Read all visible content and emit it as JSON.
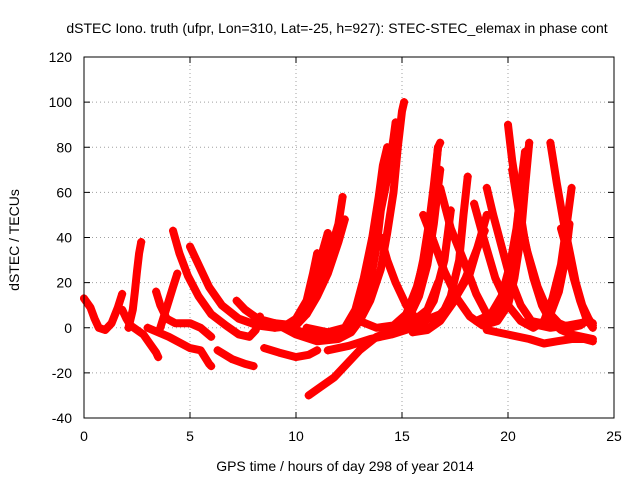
{
  "chart_data": {
    "type": "scatter",
    "title": "dSTEC Iono. truth (ufpr, Lon=310, Lat=-25, h=927): STEC-STEC_elemax in phase cont",
    "xlabel": "GPS time / hours of day 298 of year 2014",
    "ylabel": "dSTEC  / TECUs",
    "xlim": [
      0,
      25
    ],
    "ylim": [
      -40,
      120
    ],
    "xticks": [
      0,
      5,
      10,
      15,
      20,
      25
    ],
    "yticks": [
      -40,
      -20,
      0,
      20,
      40,
      60,
      80,
      100,
      120
    ],
    "grid": true,
    "legend": "none",
    "marker": "plus",
    "color": "#ff0000",
    "series": [
      {
        "points": [
          [
            0.0,
            13
          ],
          [
            0.3,
            9
          ],
          [
            0.5,
            4
          ],
          [
            0.7,
            0
          ],
          [
            1.0,
            -1
          ],
          [
            1.3,
            2
          ],
          [
            1.6,
            9
          ],
          [
            1.8,
            15
          ]
        ]
      },
      {
        "points": [
          [
            1.8,
            8
          ],
          [
            2.0,
            4
          ],
          [
            2.2,
            1
          ],
          [
            2.5,
            -1
          ],
          [
            2.8,
            -3
          ],
          [
            3.1,
            -7
          ],
          [
            3.4,
            -11
          ],
          [
            3.5,
            -13
          ]
        ]
      },
      {
        "points": [
          [
            2.1,
            0
          ],
          [
            2.3,
            8
          ],
          [
            2.4,
            16
          ],
          [
            2.5,
            25
          ],
          [
            2.6,
            33
          ],
          [
            2.7,
            38
          ]
        ]
      },
      {
        "points": [
          [
            3.4,
            16
          ],
          [
            3.6,
            10
          ],
          [
            3.9,
            4
          ],
          [
            4.3,
            2
          ],
          [
            5.0,
            2
          ],
          [
            5.5,
            0
          ],
          [
            6.0,
            -4
          ]
        ]
      },
      {
        "points": [
          [
            3.6,
            0
          ],
          [
            3.8,
            6
          ],
          [
            4.0,
            12
          ],
          [
            4.2,
            18
          ],
          [
            4.4,
            24
          ]
        ]
      },
      {
        "points": [
          [
            4.2,
            43
          ],
          [
            4.5,
            33
          ],
          [
            4.9,
            23
          ],
          [
            5.4,
            14
          ],
          [
            6.0,
            6
          ],
          [
            6.7,
            1
          ],
          [
            7.3,
            -3
          ],
          [
            7.8,
            -4
          ],
          [
            8.1,
            -1
          ],
          [
            8.3,
            5
          ]
        ]
      },
      {
        "points": [
          [
            3.0,
            0
          ],
          [
            4.0,
            -4
          ],
          [
            5.0,
            -9
          ],
          [
            5.5,
            -10
          ],
          [
            5.9,
            -16
          ],
          [
            6.0,
            -17
          ]
        ]
      },
      {
        "points": [
          [
            5.0,
            36
          ],
          [
            5.4,
            28
          ],
          [
            5.9,
            18
          ],
          [
            6.5,
            10
          ],
          [
            7.3,
            4
          ],
          [
            8.2,
            1
          ],
          [
            9.0,
            0
          ],
          [
            9.8,
            2
          ],
          [
            10.5,
            6
          ],
          [
            11.0,
            14
          ],
          [
            11.5,
            24
          ],
          [
            12.0,
            38
          ],
          [
            12.3,
            48
          ]
        ]
      },
      {
        "points": [
          [
            6.3,
            -10
          ],
          [
            7.0,
            -14
          ],
          [
            7.6,
            -16
          ],
          [
            8.0,
            -17
          ]
        ]
      },
      {
        "points": [
          [
            7.2,
            12
          ],
          [
            7.6,
            8
          ],
          [
            8.2,
            4
          ],
          [
            9.0,
            2
          ],
          [
            10.0,
            1
          ],
          [
            10.5,
            6
          ],
          [
            11.0,
            16
          ],
          [
            11.5,
            30
          ],
          [
            12.0,
            46
          ],
          [
            12.2,
            58
          ]
        ]
      },
      {
        "points": [
          [
            8.0,
            3
          ],
          [
            9.0,
            0
          ],
          [
            10.0,
            1
          ],
          [
            10.4,
            8
          ],
          [
            10.8,
            18
          ],
          [
            11.2,
            32
          ],
          [
            11.5,
            42
          ]
        ]
      },
      {
        "points": [
          [
            9.5,
            1
          ],
          [
            10.0,
            4
          ],
          [
            10.5,
            12
          ],
          [
            10.8,
            24
          ],
          [
            11.0,
            33
          ]
        ]
      },
      {
        "points": [
          [
            8.5,
            -9
          ],
          [
            9.2,
            -11
          ],
          [
            10.0,
            -13
          ],
          [
            10.6,
            -12
          ],
          [
            11.0,
            -10
          ]
        ]
      },
      {
        "points": [
          [
            9.0,
            2
          ],
          [
            10.0,
            -3
          ],
          [
            11.0,
            -6
          ],
          [
            12.0,
            -5
          ],
          [
            12.6,
            -2
          ],
          [
            13.0,
            3
          ],
          [
            13.5,
            12
          ],
          [
            14.0,
            26
          ],
          [
            14.3,
            42
          ],
          [
            14.6,
            60
          ],
          [
            14.8,
            80
          ],
          [
            15.0,
            96
          ],
          [
            15.1,
            100
          ]
        ]
      },
      {
        "points": [
          [
            10.0,
            -1
          ],
          [
            11.0,
            -4
          ],
          [
            12.0,
            -3
          ],
          [
            12.6,
            0
          ],
          [
            13.0,
            6
          ],
          [
            13.5,
            20
          ],
          [
            13.8,
            36
          ],
          [
            14.0,
            52
          ],
          [
            14.3,
            66
          ],
          [
            14.5,
            78
          ],
          [
            14.6,
            84
          ],
          [
            14.7,
            91
          ]
        ]
      },
      {
        "points": [
          [
            10.5,
            0
          ],
          [
            11.5,
            -2
          ],
          [
            12.3,
            0
          ],
          [
            12.8,
            8
          ],
          [
            13.2,
            22
          ],
          [
            13.6,
            40
          ],
          [
            13.9,
            58
          ],
          [
            14.1,
            72
          ],
          [
            14.3,
            80
          ]
        ]
      },
      {
        "points": [
          [
            10.6,
            -30
          ],
          [
            11.2,
            -26
          ],
          [
            11.8,
            -22
          ],
          [
            12.4,
            -16
          ],
          [
            13.0,
            -10
          ],
          [
            13.8,
            -4
          ],
          [
            14.6,
            -1
          ],
          [
            15.4,
            2
          ],
          [
            16.2,
            8
          ],
          [
            16.7,
            20
          ]
        ]
      },
      {
        "points": [
          [
            11.5,
            -10
          ],
          [
            12.5,
            -8
          ],
          [
            13.5,
            -5
          ],
          [
            14.5,
            -3
          ],
          [
            15.5,
            0
          ],
          [
            16.0,
            4
          ],
          [
            16.5,
            12
          ],
          [
            17.0,
            30
          ],
          [
            17.3,
            52
          ]
        ]
      },
      {
        "points": [
          [
            13.0,
            3
          ],
          [
            13.8,
            0
          ],
          [
            14.6,
            1
          ],
          [
            15.2,
            6
          ],
          [
            15.7,
            18
          ],
          [
            16.2,
            36
          ],
          [
            16.5,
            60
          ],
          [
            16.7,
            80
          ],
          [
            16.8,
            82
          ]
        ]
      },
      {
        "points": [
          [
            14.0,
            40
          ],
          [
            14.3,
            30
          ],
          [
            14.7,
            20
          ],
          [
            15.2,
            10
          ],
          [
            15.8,
            2
          ],
          [
            16.3,
            0
          ],
          [
            16.8,
            4
          ],
          [
            17.3,
            14
          ],
          [
            17.7,
            30
          ],
          [
            17.9,
            50
          ],
          [
            18.1,
            67
          ]
        ]
      },
      {
        "points": [
          [
            14.5,
            0
          ],
          [
            15.3,
            4
          ],
          [
            15.8,
            14
          ],
          [
            16.2,
            28
          ],
          [
            16.5,
            46
          ],
          [
            16.7,
            62
          ],
          [
            16.8,
            70
          ]
        ]
      },
      {
        "points": [
          [
            15.0,
            2
          ],
          [
            15.6,
            12
          ],
          [
            16.0,
            30
          ],
          [
            16.3,
            48
          ],
          [
            16.5,
            63
          ],
          [
            16.7,
            80
          ]
        ]
      },
      {
        "points": [
          [
            16.0,
            50
          ],
          [
            16.5,
            38
          ],
          [
            17.0,
            25
          ],
          [
            17.6,
            13
          ],
          [
            18.2,
            5
          ],
          [
            18.8,
            1
          ],
          [
            19.5,
            3
          ],
          [
            20.0,
            10
          ],
          [
            20.3,
            22
          ],
          [
            20.6,
            40
          ],
          [
            20.8,
            62
          ],
          [
            21.0,
            82
          ]
        ]
      },
      {
        "points": [
          [
            16.8,
            62
          ],
          [
            17.3,
            44
          ],
          [
            17.9,
            30
          ],
          [
            18.5,
            15
          ],
          [
            19.0,
            6
          ],
          [
            19.5,
            4
          ],
          [
            20.0,
            14
          ],
          [
            20.3,
            30
          ],
          [
            20.5,
            52
          ],
          [
            20.7,
            70
          ],
          [
            20.8,
            78
          ]
        ]
      },
      {
        "points": [
          [
            15.5,
            -2
          ],
          [
            16.2,
            -1
          ],
          [
            16.8,
            3
          ],
          [
            17.4,
            11
          ],
          [
            18.0,
            22
          ],
          [
            18.5,
            34
          ],
          [
            18.9,
            43
          ]
        ]
      },
      {
        "points": [
          [
            16.0,
            3
          ],
          [
            16.8,
            6
          ],
          [
            17.5,
            13
          ],
          [
            18.2,
            24
          ],
          [
            18.7,
            40
          ],
          [
            19.0,
            50
          ]
        ]
      },
      {
        "points": [
          [
            18.4,
            55
          ],
          [
            18.9,
            38
          ],
          [
            19.4,
            22
          ],
          [
            20.0,
            10
          ],
          [
            20.6,
            3
          ],
          [
            21.2,
            0
          ],
          [
            21.7,
            3
          ],
          [
            22.1,
            13
          ],
          [
            22.5,
            28
          ],
          [
            22.8,
            48
          ],
          [
            23.0,
            62
          ]
        ]
      },
      {
        "points": [
          [
            19.0,
            62
          ],
          [
            19.3,
            50
          ],
          [
            19.7,
            36
          ],
          [
            20.1,
            22
          ],
          [
            20.6,
            10
          ],
          [
            21.1,
            3
          ],
          [
            21.6,
            2
          ],
          [
            22.0,
            6
          ],
          [
            22.4,
            16
          ],
          [
            22.7,
            30
          ],
          [
            22.9,
            46
          ]
        ]
      },
      {
        "points": [
          [
            20.0,
            90
          ],
          [
            20.2,
            74
          ],
          [
            20.5,
            56
          ],
          [
            20.8,
            38
          ],
          [
            21.2,
            22
          ],
          [
            21.6,
            10
          ],
          [
            22.0,
            3
          ],
          [
            22.5,
            -1
          ],
          [
            23.0,
            -3
          ],
          [
            23.5,
            -4
          ],
          [
            24.0,
            -5
          ]
        ]
      },
      {
        "points": [
          [
            20.2,
            70
          ],
          [
            20.5,
            52
          ],
          [
            20.9,
            34
          ],
          [
            21.4,
            18
          ],
          [
            21.9,
            7
          ],
          [
            22.4,
            2
          ],
          [
            22.9,
            0
          ],
          [
            23.4,
            1
          ],
          [
            23.7,
            3
          ]
        ]
      },
      {
        "points": [
          [
            22.0,
            82
          ],
          [
            22.3,
            64
          ],
          [
            22.6,
            48
          ],
          [
            22.9,
            34
          ],
          [
            23.2,
            20
          ],
          [
            23.5,
            10
          ],
          [
            23.8,
            4
          ],
          [
            24.0,
            1
          ]
        ]
      },
      {
        "points": [
          [
            22.5,
            44
          ],
          [
            22.8,
            34
          ],
          [
            23.1,
            22
          ],
          [
            23.4,
            12
          ],
          [
            23.7,
            4
          ],
          [
            24.0,
            0
          ]
        ]
      },
      {
        "points": [
          [
            19.0,
            -1
          ],
          [
            20.0,
            -3
          ],
          [
            21.0,
            -5
          ],
          [
            21.7,
            -7
          ],
          [
            22.3,
            -6
          ],
          [
            23.0,
            -5
          ],
          [
            23.6,
            -5
          ],
          [
            24.0,
            -6
          ]
        ]
      },
      {
        "points": [
          [
            21.0,
            2
          ],
          [
            22.0,
            0
          ],
          [
            22.8,
            1
          ],
          [
            23.4,
            2
          ],
          [
            23.8,
            3
          ],
          [
            24.0,
            2
          ]
        ]
      },
      {
        "points": [
          [
            18.5,
            3
          ],
          [
            19.2,
            6
          ],
          [
            19.7,
            14
          ],
          [
            20.1,
            28
          ],
          [
            20.4,
            44
          ],
          [
            20.6,
            60
          ]
        ]
      }
    ]
  }
}
